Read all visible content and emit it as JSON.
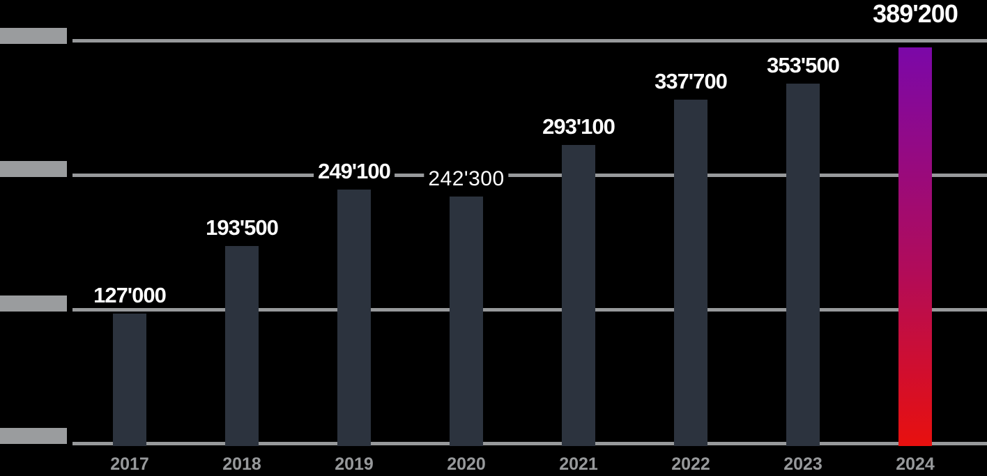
{
  "chart_data": {
    "type": "bar",
    "title": "",
    "categories": [
      "2017",
      "2018",
      "2019",
      "2020",
      "2021",
      "2022",
      "2023",
      "2024"
    ],
    "values": [
      127000,
      193500,
      249100,
      242300,
      293100,
      337700,
      353500,
      389200
    ],
    "value_labels": [
      "127'000",
      "193'500",
      "249'100",
      "242'300",
      "293'100",
      "337'700",
      "353'500",
      "389'200"
    ],
    "legible_value_label": "242'300",
    "highlighted_index": 7,
    "plain_label_index": 3,
    "xlabel": "",
    "ylabel": "",
    "ylim": [
      0,
      400000
    ],
    "gridlines": 4,
    "grid": "horizontal",
    "legend_position": "none",
    "y_axis_tick_labels_redacted_blocks": 4,
    "colors": {
      "background": "#000000",
      "bar": "#2C333E",
      "highlight_gradient_top": "#7B08A8",
      "highlight_gradient_bottom": "#E8100E",
      "gridline": "#97999B",
      "value_label": "#FFFFFF",
      "x_label": "#97999B"
    }
  }
}
